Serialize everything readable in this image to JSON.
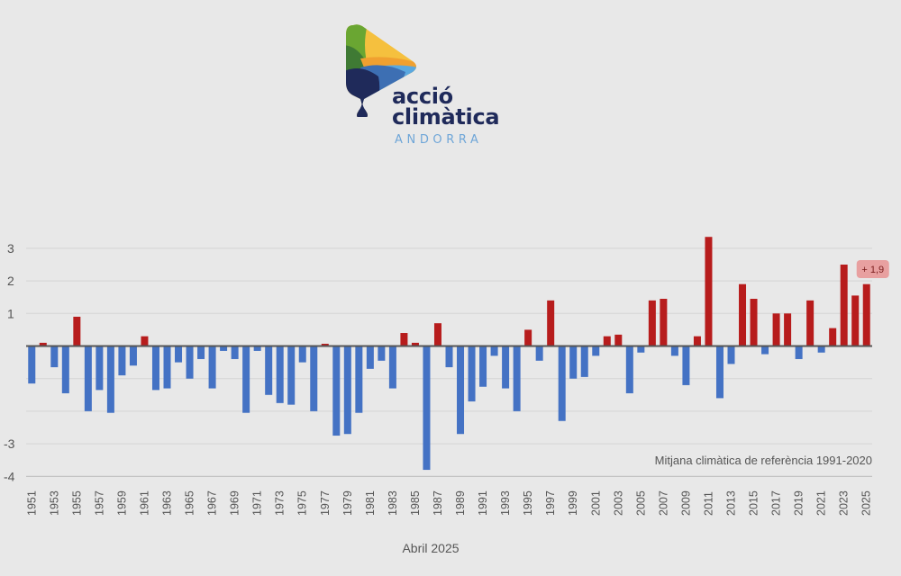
{
  "logo": {
    "line1": "acció",
    "line2": "climàtica",
    "line3": "ANDORRA",
    "colors": {
      "text": "#1f2a5a",
      "subtitle": "#6fa6d8",
      "yellow": "#f5c03e",
      "green": "#6aa632",
      "darkgreen": "#3f7a34",
      "navy": "#1f2a5a",
      "blue": "#3d6fb3",
      "lightblue": "#5aa8e0",
      "orange": "#f0a030"
    }
  },
  "chart_data": {
    "type": "bar",
    "title": "",
    "xlabel": "",
    "ylabel": "",
    "ylim": [
      -4,
      3.4
    ],
    "yticks": [
      3,
      2,
      1,
      -3,
      -4
    ],
    "ytick_labels": [
      "3",
      "2",
      "1",
      "-3",
      "-4"
    ],
    "grid": true,
    "x_label_every": 2,
    "colors": {
      "positive": "#b71c1c",
      "negative": "#4472c4",
      "zero_line": "#555555"
    },
    "categories": [
      "1951",
      "1952",
      "1953",
      "1954",
      "1955",
      "1956",
      "1957",
      "1958",
      "1959",
      "1960",
      "1961",
      "1962",
      "1963",
      "1964",
      "1965",
      "1966",
      "1967",
      "1968",
      "1969",
      "1970",
      "1971",
      "1972",
      "1973",
      "1974",
      "1975",
      "1976",
      "1977",
      "1978",
      "1979",
      "1980",
      "1981",
      "1982",
      "1983",
      "1984",
      "1985",
      "1986",
      "1987",
      "1988",
      "1989",
      "1990",
      "1991",
      "1992",
      "1993",
      "1994",
      "1995",
      "1996",
      "1997",
      "1998",
      "1999",
      "2000",
      "2001",
      "2002",
      "2003",
      "2004",
      "2005",
      "2006",
      "2007",
      "2008",
      "2009",
      "2010",
      "2011",
      "2012",
      "2013",
      "2014",
      "2015",
      "2016",
      "2017",
      "2018",
      "2019",
      "2020",
      "2021",
      "2022",
      "2023",
      "2024",
      "2025"
    ],
    "values": [
      -1.15,
      0.1,
      -0.65,
      -1.45,
      0.9,
      -2.0,
      -1.35,
      -2.05,
      -0.9,
      -0.6,
      0.3,
      -1.35,
      -1.3,
      -0.5,
      -1.0,
      -0.4,
      -1.3,
      -0.15,
      -0.4,
      -2.05,
      -0.15,
      -1.5,
      -1.75,
      -1.8,
      -0.5,
      -2.0,
      0.07,
      -2.75,
      -2.7,
      -2.05,
      -0.7,
      -0.45,
      -1.3,
      0.4,
      0.1,
      -3.8,
      0.7,
      -0.65,
      -2.7,
      -1.7,
      -1.25,
      -0.3,
      -1.3,
      -2.0,
      0.5,
      -0.45,
      1.4,
      -2.3,
      -1.0,
      -0.95,
      -0.3,
      0.3,
      0.35,
      -1.45,
      -0.2,
      1.4,
      1.45,
      -0.3,
      -1.2,
      0.3,
      3.35,
      -1.6,
      -0.55,
      1.9,
      1.45,
      -0.25,
      1.0,
      1.0,
      -0.4,
      1.4,
      -0.2,
      0.55,
      2.5,
      1.55,
      1.9
    ],
    "reference_label": "Mitjana climàtica de referència 1991-2020",
    "callout": {
      "year": "2025",
      "text": "+ 1,9",
      "color": "#e8a0a0"
    },
    "caption": "Abril 2025"
  }
}
